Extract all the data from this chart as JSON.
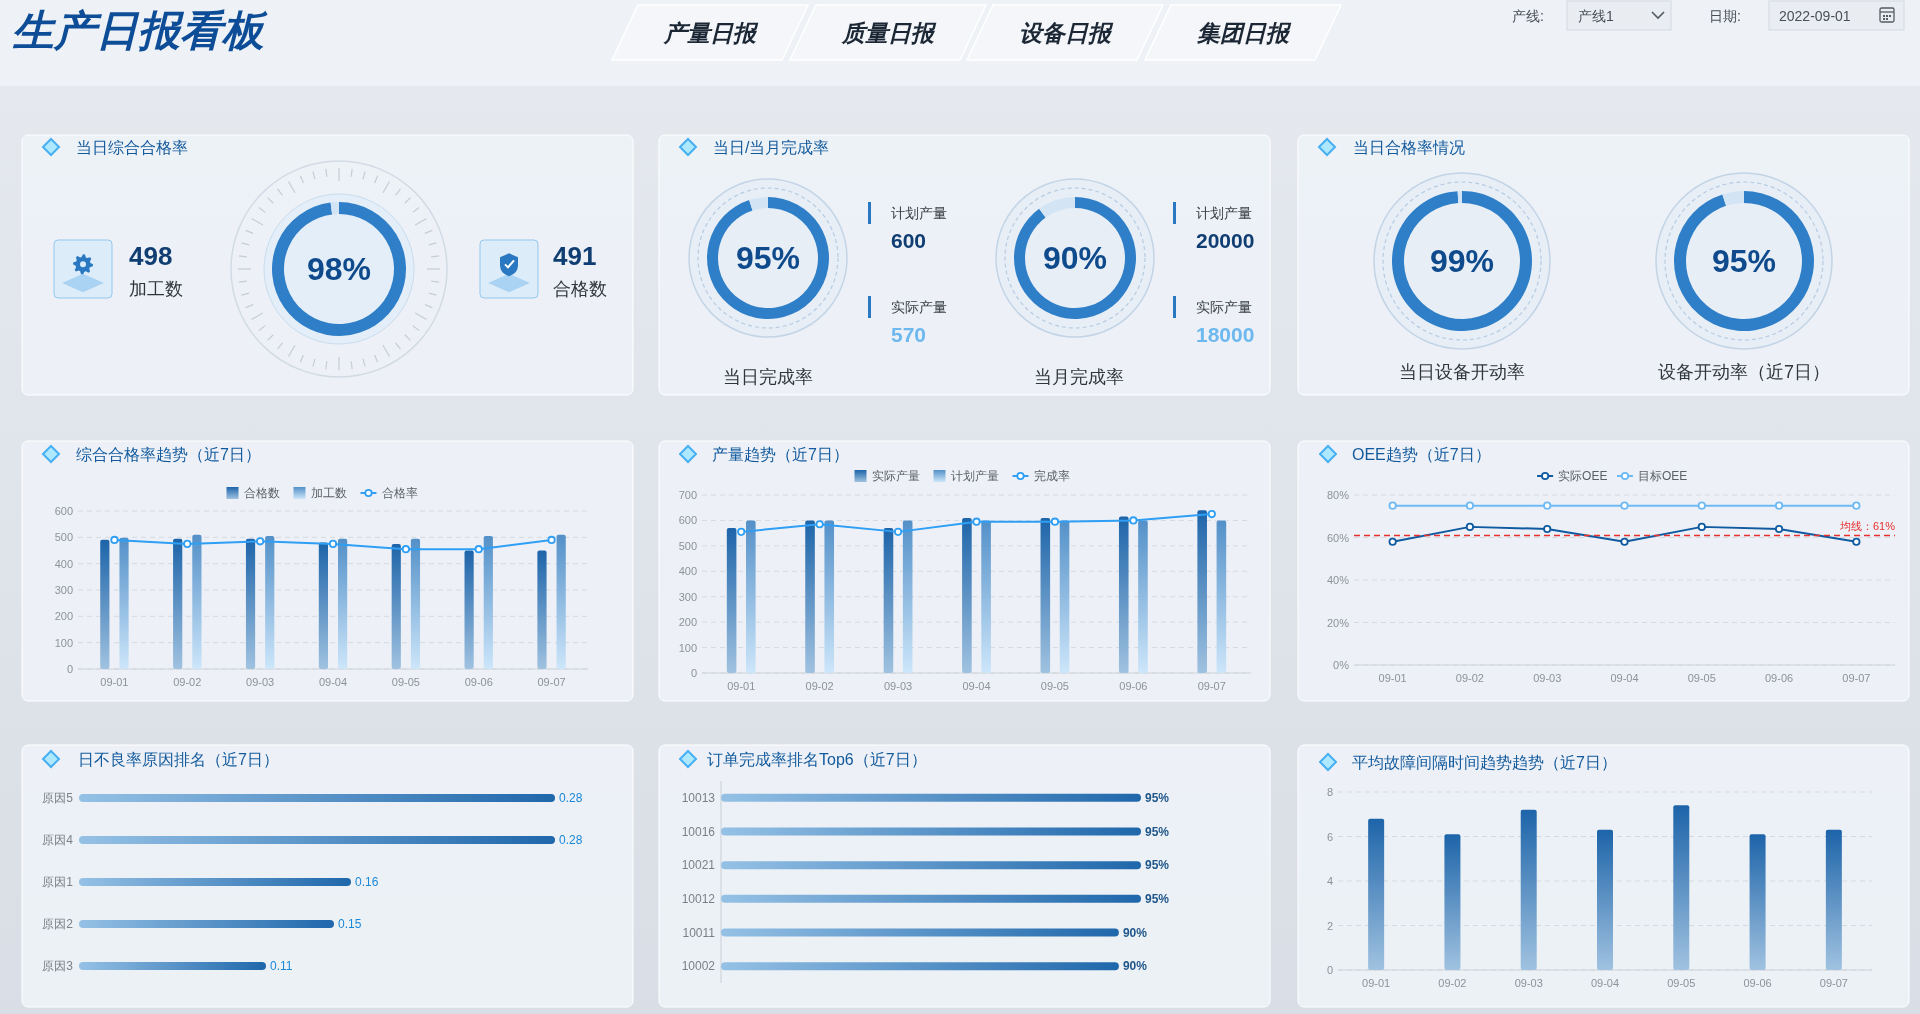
{
  "chart_data": [
    {
      "type": "other",
      "title": "生产日报看板",
      "annotations": [
        "产量日报",
        "质量日报",
        "设备日报",
        "集团日报",
        "产线:",
        "产线1",
        "日期:",
        "2022-09-01"
      ]
    },
    {
      "type": "donut",
      "title": "当日综合合格率",
      "categories": [
        null,
        null
      ],
      "values": [
        98,
        2
      ],
      "colors": [
        "#2f7fc8",
        "#d3e4f4"
      ],
      "value_labels": [
        "98%",
        null
      ],
      "annotations": [
        "498",
        "加工数",
        "491",
        "合格数"
      ]
    },
    {
      "type": "donut",
      "title": "当日/当月完成率",
      "categories": [
        null,
        null
      ],
      "values": [
        95,
        5
      ],
      "colors": [
        "#2f7fc8",
        "#d3e4f4"
      ],
      "value_labels": [
        "95%",
        null
      ],
      "annotations": [
        "当日完成率",
        "计划产量",
        "600",
        "实际产量",
        "570"
      ]
    },
    {
      "type": "donut",
      "categories": [
        null,
        null
      ],
      "values": [
        90,
        10
      ],
      "colors": [
        "#2f7fc8",
        "#d3e4f4"
      ],
      "value_labels": [
        "90%",
        null
      ],
      "annotations": [
        "当月完成率",
        "计划产量",
        "20000",
        "实际产量",
        "18000"
      ]
    },
    {
      "type": "donut",
      "title": "当日合格率情况",
      "categories": [
        null,
        null
      ],
      "values": [
        99,
        1
      ],
      "colors": [
        "#2f7fc8",
        "#d3e4f4"
      ],
      "value_labels": [
        "99%",
        null
      ],
      "annotations": [
        "当日设备开动率"
      ]
    },
    {
      "type": "donut",
      "categories": [
        null,
        null
      ],
      "values": [
        95,
        5
      ],
      "colors": [
        "#2f7fc8",
        "#d3e4f4"
      ],
      "value_labels": [
        "95%",
        null
      ],
      "annotations": [
        "设备开动率（近7日）"
      ]
    },
    {
      "type": "bar",
      "title": "综合合格率趋势（近7日）",
      "categories": [
        "09-01",
        "09-02",
        "09-03",
        "09-04",
        "09-05",
        "09-06",
        "09-07"
      ],
      "series": [
        {
          "name": "合格数",
          "color": "#2c78bb",
          "values": [
            491,
            495,
            495,
            480,
            475,
            450,
            450
          ]
        },
        {
          "name": "加工数",
          "color": "#8fc8f4",
          "values": [
            498,
            510,
            505,
            495,
            495,
            505,
            510
          ]
        },
        {
          "name": "合格率",
          "type": "line",
          "color": "#2f9ef5",
          "values": [
            490,
            475,
            485,
            475,
            455,
            455,
            490
          ]
        }
      ],
      "ylim": [
        0,
        600
      ],
      "yticks": [
        0,
        100,
        200,
        300,
        400,
        500,
        600
      ],
      "grid": "y",
      "legend": "top",
      "marker": "circle"
    },
    {
      "type": "bar",
      "title": "产量趋势（近7日）",
      "categories": [
        "09-01",
        "09-02",
        "09-03",
        "09-04",
        "09-05",
        "09-06",
        "09-07"
      ],
      "series": [
        {
          "name": "实际产量",
          "color": "#2c78bb",
          "values": [
            570,
            600,
            570,
            610,
            610,
            615,
            640
          ]
        },
        {
          "name": "计划产量",
          "color": "#8fc8f4",
          "values": [
            600,
            600,
            600,
            600,
            600,
            600,
            600
          ]
        },
        {
          "name": "完成率",
          "type": "line",
          "color": "#2f9ef5",
          "values": [
            555,
            585,
            555,
            595,
            595,
            600,
            625
          ]
        }
      ],
      "ylim": [
        0,
        700
      ],
      "yticks": [
        0,
        100,
        200,
        300,
        400,
        500,
        600,
        700
      ],
      "grid": "y",
      "legend": "top",
      "marker": "circle"
    },
    {
      "type": "line",
      "title": "OEE趋势（近7日）",
      "categories": [
        "09-01",
        "09-02",
        "09-03",
        "09-04",
        "09-05",
        "09-06",
        "09-07"
      ],
      "series": [
        {
          "name": "实际OEE",
          "color": "#0f5aa0",
          "values": [
            58,
            65,
            64,
            58,
            65,
            64,
            58
          ]
        },
        {
          "name": "目标OEE",
          "color": "#6cb9f4",
          "values": [
            75,
            75,
            75,
            75,
            75,
            75,
            75
          ]
        }
      ],
      "ylim": [
        0,
        80
      ],
      "yticks": [
        {
          "value": 0,
          "label": "0%"
        },
        {
          "value": 20,
          "label": "20%"
        },
        {
          "value": 40,
          "label": "40%"
        },
        {
          "value": 60,
          "label": "60%"
        },
        {
          "value": 80,
          "label": "80%"
        }
      ],
      "grid": "y",
      "legend": "top",
      "marker": "circle",
      "ref_lines": [
        {
          "axis": "y",
          "value": 61,
          "label": "均线：61%",
          "color": "#e8302f",
          "line_style": "dashed"
        }
      ]
    },
    {
      "type": "bar",
      "orientation": "horizontal",
      "title": "日不良率原因排名（近7日）",
      "categories": [
        "原因5",
        "原因4",
        "原因1",
        "原因2",
        "原因3"
      ],
      "values": [
        0.28,
        0.28,
        0.16,
        0.15,
        0.11
      ],
      "color": "#3f8fd0",
      "data_labels": true,
      "tick_labels": "y"
    },
    {
      "type": "bar",
      "orientation": "horizontal",
      "title": "订单完成率排名Top6（近7日）",
      "categories": [
        "10013",
        "10016",
        "10021",
        "10012",
        "10011",
        "10002"
      ],
      "values": [
        95,
        95,
        95,
        95,
        90,
        90
      ],
      "value_labels": [
        "95%",
        "95%",
        "95%",
        "95%",
        "90%",
        "90%"
      ],
      "color": "#3f8fd0",
      "tick_labels": "y"
    },
    {
      "type": "bar",
      "title": "平均故障间隔时间趋势趋势（近7日）",
      "categories": [
        "09-01",
        "09-02",
        "09-03",
        "09-04",
        "09-05",
        "09-06",
        "09-07"
      ],
      "values": [
        6.8,
        6.1,
        7.2,
        6.3,
        7.4,
        6.1,
        6.3
      ],
      "color": "#2c78bb",
      "ylim": [
        0,
        8
      ],
      "yticks": [
        0,
        2,
        4,
        6,
        8
      ],
      "grid": "y"
    }
  ]
}
